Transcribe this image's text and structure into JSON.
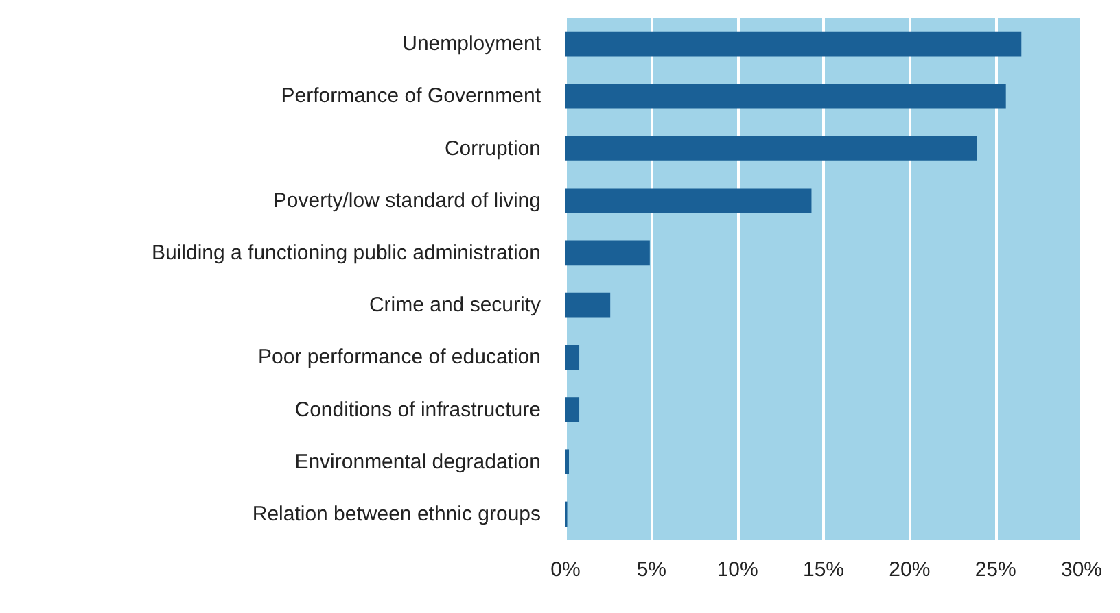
{
  "chart_data": {
    "type": "bar",
    "orientation": "horizontal",
    "categories": [
      "Unemployment",
      "Performance of Government",
      "Corruption",
      "Poverty/low standard of living",
      "Building a functioning public administration",
      "Crime and security",
      "Poor performance of education",
      "Conditions of infrastructure",
      "Environmental degradation",
      "Relation between ethnic groups"
    ],
    "values": [
      26.5,
      25.6,
      23.9,
      14.3,
      4.9,
      2.6,
      0.8,
      0.8,
      0.2,
      0.1
    ],
    "color": "#1a6096",
    "xlim": [
      0,
      30
    ],
    "xticks": [
      {
        "value": 0,
        "label": "0%"
      },
      {
        "value": 5,
        "label": "5%"
      },
      {
        "value": 10,
        "label": "10%"
      },
      {
        "value": 15,
        "label": "15%"
      },
      {
        "value": 20,
        "label": "20%"
      },
      {
        "value": 25,
        "label": "25%"
      },
      {
        "value": 30,
        "label": "30%"
      }
    ],
    "grid": "x"
  }
}
